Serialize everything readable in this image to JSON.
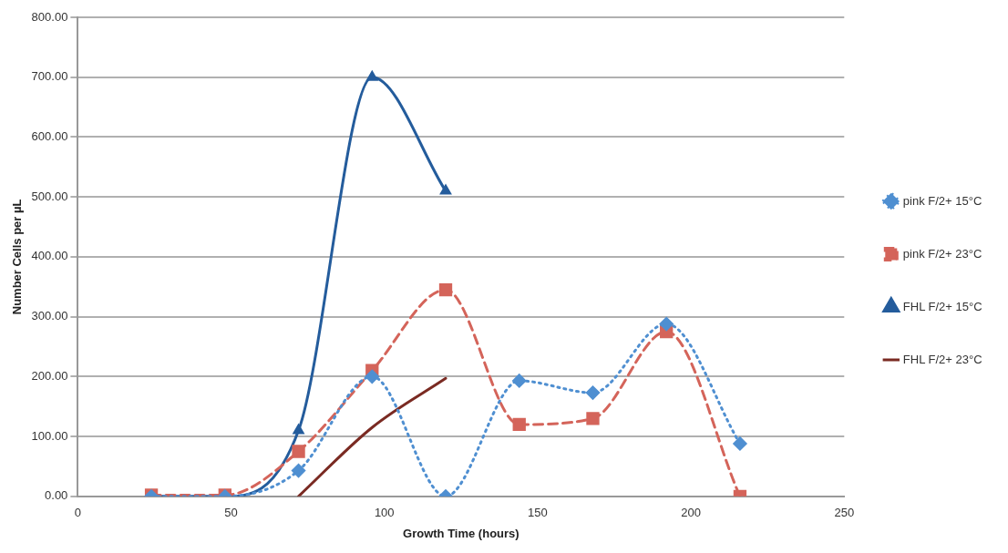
{
  "chart_data": {
    "type": "line",
    "xlabel": "Growth Time (hours)",
    "ylabel": "Number Cells per µL",
    "xlim": [
      0,
      250
    ],
    "xticks": [
      0,
      50,
      100,
      150,
      200,
      250
    ],
    "ylim": [
      0,
      800
    ],
    "yticks": [
      {
        "value": 0,
        "label": "0.00"
      },
      {
        "value": 100,
        "label": "100.00"
      },
      {
        "value": 200,
        "label": "200.00"
      },
      {
        "value": 300,
        "label": "300.00"
      },
      {
        "value": 400,
        "label": "400.00"
      },
      {
        "value": 500,
        "label": "500.00"
      },
      {
        "value": 600,
        "label": "600.00"
      },
      {
        "value": 700,
        "label": "700.00"
      },
      {
        "value": 800,
        "label": "800.00"
      }
    ],
    "grid": "y",
    "legend": "right",
    "series": [
      {
        "name": "pink F/2+ 15°C",
        "color": "#4f8fd1",
        "marker": "diamond",
        "line_style": "dotted",
        "x": [
          24,
          48,
          72,
          96,
          120,
          144,
          168,
          192,
          216
        ],
        "values": [
          0,
          0,
          43,
          200,
          0,
          193,
          173,
          288,
          88
        ]
      },
      {
        "name": "pink F/2+ 23°C",
        "color": "#d4645a",
        "marker": "square",
        "line_style": "dashed",
        "x": [
          24,
          48,
          72,
          96,
          120,
          144,
          168,
          192,
          216
        ],
        "values": [
          2,
          2,
          75,
          210,
          345,
          120,
          130,
          275,
          0
        ]
      },
      {
        "name": "FHL F/2+ 15°C",
        "color": "#245c9c",
        "marker": "triangle",
        "line_style": "solid",
        "x": [
          24,
          48,
          72,
          96,
          120
        ],
        "values": [
          0,
          0,
          110,
          700,
          510
        ]
      },
      {
        "name": "FHL F/2+ 23°C",
        "color": "#7a2a22",
        "marker": "none",
        "line_style": "solid",
        "x": [
          72,
          96,
          120
        ],
        "values": [
          0,
          115,
          197
        ]
      }
    ]
  }
}
